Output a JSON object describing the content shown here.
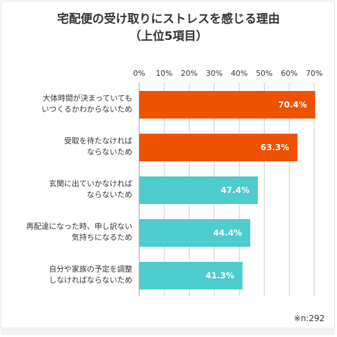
{
  "title_lines": [
    "宅配便の受け取りにストレスを感じる理由",
    "（上位5項目）"
  ],
  "note": "※n:292",
  "colors": {
    "top": "#ee5100",
    "rest": "#4ecbcc",
    "grid": "#cccccc",
    "text": "#333333"
  },
  "chart_data": {
    "type": "bar",
    "orientation": "horizontal",
    "title": "宅配便の受け取りにストレスを感じる理由（上位5項目）",
    "xlim": [
      0,
      70
    ],
    "xticks": [
      "0%",
      "10%",
      "20%",
      "30%",
      "40%",
      "50%",
      "60%",
      "70%"
    ],
    "grid": true,
    "categories": [
      [
        "大体時間が決まっていても",
        "いつくるかわからないため"
      ],
      [
        "受取を待たなければ",
        "ならないため"
      ],
      [
        "玄関に出ていかなければ",
        "ならないため"
      ],
      [
        "再配達になった時、申し訳ない",
        "気持ちになるため"
      ],
      [
        "自分や家族の予定を調整",
        "しなければならないため"
      ]
    ],
    "values": [
      70.4,
      63.3,
      47.4,
      44.4,
      41.3
    ],
    "labels": [
      "70.4%",
      "63.3%",
      "47.4%",
      "44.4%",
      "41.3%"
    ],
    "highlight_count": 2
  }
}
